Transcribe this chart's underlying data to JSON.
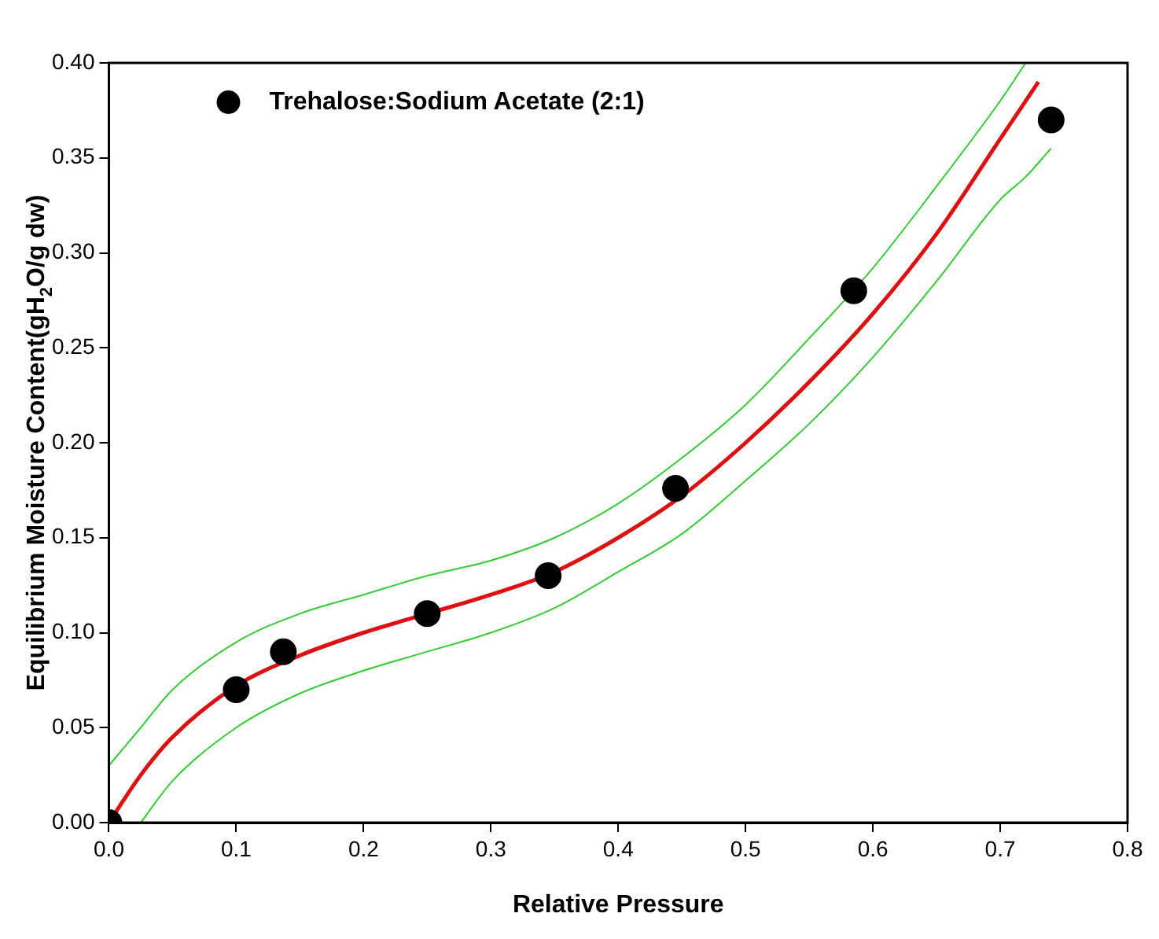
{
  "chart_data": {
    "type": "scatter",
    "xlabel": "Relative Pressure",
    "ylabel": "Equilibrium Moisture Content(gH$_{2}$O/g dw)",
    "legend": "top left",
    "marker": "circle",
    "grid": false,
    "xlim": [
      0,
      0.8
    ],
    "xticks": [
      {
        "value": 0,
        "label": "0.0"
      },
      0.1,
      0.2,
      0.3,
      0.4,
      0.5,
      0.6,
      0.7,
      0.8
    ],
    "ylim": [
      0,
      0.4
    ],
    "yticks": [
      {
        "value": 0,
        "label": "0.00"
      },
      {
        "value": 0.05,
        "label": "0.05"
      },
      {
        "value": 0.1,
        "label": "0.10"
      },
      {
        "value": 0.15,
        "label": "0.15"
      },
      {
        "value": 0.2,
        "label": "0.20"
      },
      {
        "value": 0.25,
        "label": "0.25"
      },
      {
        "value": 0.3,
        "label": "0.30"
      },
      {
        "value": 0.35,
        "label": "0.35"
      },
      {
        "value": 0.4,
        "label": "0.40"
      }
    ],
    "series": [
      {
        "name": "Trehalose:Sodium Acetate (2:1)",
        "color": "#000000",
        "x": [
          0,
          0.1,
          0.137,
          0.25,
          0.345,
          0.445,
          0.585,
          0.74
        ],
        "values": [
          0,
          0.07,
          0.09,
          0.11,
          0.13,
          0.176,
          0.28,
          0.37
        ]
      },
      {
        "type": "line",
        "color": "#33cc33",
        "marker": "none",
        "x": [
          0,
          0.025,
          0.05,
          0.1,
          0.15,
          0.2,
          0.25,
          0.3,
          0.35,
          0.4,
          0.45,
          0.5,
          0.55,
          0.6,
          0.65,
          0.7,
          0.72
        ],
        "values": [
          0.03,
          0.05,
          0.07,
          0.095,
          0.11,
          0.12,
          0.13,
          0.138,
          0.15,
          0.168,
          0.192,
          0.22,
          0.255,
          0.292,
          0.335,
          0.38,
          0.4
        ]
      },
      {
        "type": "line",
        "color": "#33cc33",
        "marker": "none",
        "x": [
          0.025,
          0.05,
          0.1,
          0.15,
          0.2,
          0.25,
          0.3,
          0.35,
          0.4,
          0.45,
          0.5,
          0.55,
          0.6,
          0.65,
          0.7,
          0.72,
          0.74
        ],
        "values": [
          0,
          0.022,
          0.05,
          0.068,
          0.08,
          0.09,
          0.1,
          0.113,
          0.132,
          0.152,
          0.18,
          0.21,
          0.245,
          0.285,
          0.328,
          0.34,
          0.355
        ]
      },
      {
        "type": "line",
        "color": "#dd1111",
        "marker": "none",
        "x": [
          0,
          0.025,
          0.05,
          0.1,
          0.15,
          0.2,
          0.25,
          0.3,
          0.35,
          0.4,
          0.45,
          0.5,
          0.55,
          0.6,
          0.65,
          0.7,
          0.72,
          0.73
        ],
        "values": [
          0,
          0.025,
          0.045,
          0.072,
          0.088,
          0.1,
          0.11,
          0.12,
          0.132,
          0.15,
          0.172,
          0.2,
          0.232,
          0.268,
          0.31,
          0.36,
          0.38,
          0.39
        ]
      }
    ]
  }
}
